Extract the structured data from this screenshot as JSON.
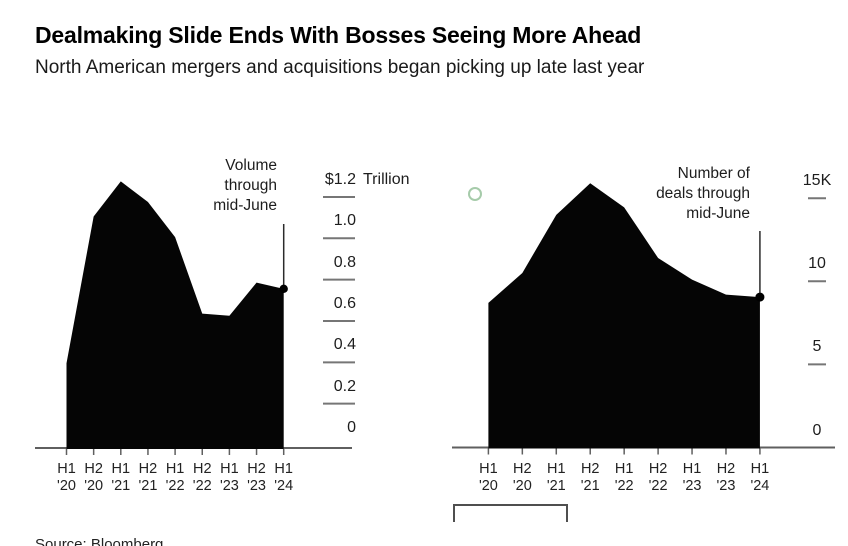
{
  "header": {
    "title": "Dealmaking Slide Ends With Bosses Seeing More Ahead",
    "subtitle": "North American mergers and acquisitions began picking up late last year"
  },
  "source": "Source: Bloomberg",
  "colors": {
    "area_fill": "#050505",
    "axis": "#5f5f5f",
    "dash": "#767676",
    "pointer_line": "#2b2b2b",
    "dot": "#000000",
    "green_ring": "#a6cbaa"
  },
  "chart_data": [
    {
      "type": "area",
      "name": "volume",
      "annotation_lines": [
        "Volume",
        "through",
        "mid-June"
      ],
      "categories": [
        "H1 '20",
        "H2 '20",
        "H1 '21",
        "H2 '21",
        "H1 '22",
        "H2 '22",
        "H1 '23",
        "H2 '23",
        "H1 '24"
      ],
      "values": [
        0.41,
        1.12,
        1.29,
        1.19,
        1.02,
        0.65,
        0.64,
        0.8,
        0.77
      ],
      "unit": "$ Trillion",
      "ylim": [
        0,
        1.2
      ],
      "y_ticks": [
        {
          "value": 1.2,
          "label": "$1.2",
          "suffix": " Trillion"
        },
        {
          "value": 1.0,
          "label": "1.0"
        },
        {
          "value": 0.8,
          "label": "0.8"
        },
        {
          "value": 0.6,
          "label": "0.6"
        },
        {
          "value": 0.4,
          "label": "0.4"
        },
        {
          "value": 0.2,
          "label": "0.2"
        },
        {
          "value": 0.0,
          "label": "0"
        }
      ],
      "last_point_marker": true,
      "legend_position": "right-axis"
    },
    {
      "type": "area",
      "name": "deal-count",
      "annotation_lines": [
        "Number of",
        "deals through",
        "mid-June"
      ],
      "categories": [
        "H1 '20",
        "H2 '20",
        "H1 '21",
        "H2 '21",
        "H1 '22",
        "H2 '22",
        "H1 '23",
        "H2 '23",
        "H1 '24"
      ],
      "values": [
        8.7,
        10.5,
        14.0,
        15.9,
        14.45,
        11.4,
        10.1,
        9.2,
        9.05
      ],
      "unit": "thousand deals",
      "ylim": [
        0,
        15.9
      ],
      "y_ticks": [
        {
          "value": 15,
          "label": "15K"
        },
        {
          "value": 10,
          "label": "10"
        },
        {
          "value": 5,
          "label": "5"
        },
        {
          "value": 0,
          "label": "0"
        }
      ],
      "last_point_marker": true,
      "legend_position": "right-axis"
    }
  ]
}
